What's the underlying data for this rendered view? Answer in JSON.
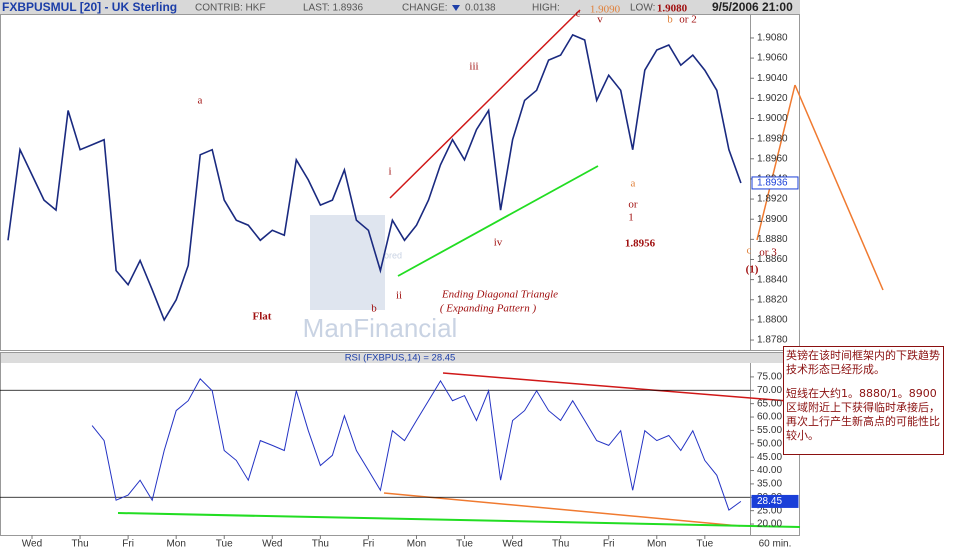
{
  "chart_data": [
    {
      "type": "line",
      "title": "FXBPUSMUL [20] - UK Sterling",
      "header": {
        "contrib": "CONTRIB: HKF",
        "last": "LAST: 1.8936",
        "change_label": "CHANGE:",
        "change": "0.0138",
        "high": "HIGH:",
        "low": "LOW:",
        "datetime": "9/5/2006 21:00"
      },
      "x": [
        -0.5,
        -0.25,
        0,
        0.25,
        0.5,
        0.75,
        1,
        1.25,
        1.5,
        1.75,
        2,
        2.25,
        2.5,
        2.75,
        3,
        3.25,
        3.5,
        3.75,
        4,
        4.25,
        4.5,
        4.75,
        5,
        5.25,
        5.5,
        5.75,
        6,
        6.25,
        6.5,
        6.75,
        7,
        7.25,
        7.5,
        7.75,
        8,
        8.25,
        8.5,
        8.75,
        9,
        9.25,
        9.5,
        9.75,
        10,
        10.25,
        10.5,
        10.75,
        11,
        11.25,
        11.5,
        11.75,
        12,
        12.25,
        12.5,
        12.75,
        13,
        13.25,
        13.5,
        13.75,
        14,
        14.25,
        14.5,
        14.75
      ],
      "values": [
        1.8879,
        1.8969,
        1.8944,
        1.8919,
        1.8909,
        1.9008,
        1.8969,
        1.8974,
        1.8979,
        1.8849,
        1.8835,
        1.8859,
        1.883,
        1.88,
        1.882,
        1.8854,
        1.8964,
        1.8969,
        1.8919,
        1.8899,
        1.8894,
        1.8879,
        1.8889,
        1.8884,
        1.8959,
        1.8939,
        1.8914,
        1.8919,
        1.8949,
        1.8899,
        1.8889,
        1.8849,
        1.8899,
        1.8879,
        1.8894,
        1.8919,
        1.8954,
        1.8979,
        1.8959,
        1.8989,
        1.9008,
        1.8909,
        1.8979,
        1.9018,
        1.9028,
        1.9058,
        1.9063,
        1.9083,
        1.9078,
        1.9018,
        1.9043,
        1.9028,
        1.8969,
        1.9048,
        1.9068,
        1.9073,
        1.9053,
        1.9063,
        1.9048,
        1.9028,
        1.8969,
        1.8936
      ],
      "color": "#1a2a80",
      "xlim": [
        -0.666,
        14.94
      ],
      "xticks": [
        {
          "value": 0,
          "label": "Wed"
        },
        {
          "value": 1,
          "label": "Thu"
        },
        {
          "value": 2,
          "label": "Fri"
        },
        {
          "value": 3,
          "label": "Mon"
        },
        {
          "value": 4,
          "label": "Tue"
        },
        {
          "value": 5,
          "label": "Wed"
        },
        {
          "value": 6,
          "label": "Thu"
        },
        {
          "value": 7,
          "label": "Fri"
        },
        {
          "value": 8,
          "label": "Mon"
        },
        {
          "value": 9,
          "label": "Tue"
        },
        {
          "value": 10,
          "label": "Wed"
        },
        {
          "value": 11,
          "label": "Thu"
        },
        {
          "value": 12,
          "label": "Fri"
        },
        {
          "value": 13,
          "label": "Mon"
        },
        {
          "value": 14,
          "label": "Tue"
        }
      ],
      "interval_label": "60 min.",
      "ylim": [
        1.87701,
        1.91038
      ],
      "yticks": [
        {
          "value": 1.878,
          "label": "1.8780"
        },
        {
          "value": 1.88,
          "label": "1.8800"
        },
        {
          "value": 1.882,
          "label": "1.8820"
        },
        {
          "value": 1.884,
          "label": "1.8840"
        },
        {
          "value": 1.886,
          "label": "1.8860"
        },
        {
          "value": 1.888,
          "label": "1.8880"
        },
        {
          "value": 1.89,
          "label": "1.8900"
        },
        {
          "value": 1.892,
          "label": "1.8920"
        },
        {
          "value": 1.894,
          "label": "1.8940"
        },
        {
          "value": 1.896,
          "label": "1.8960"
        },
        {
          "value": 1.898,
          "label": "1.8980"
        },
        {
          "value": 1.9,
          "label": "1.9000"
        },
        {
          "value": 1.902,
          "label": "1.9020"
        },
        {
          "value": 1.904,
          "label": "1.9040"
        },
        {
          "value": 1.906,
          "label": "1.9060"
        },
        {
          "value": 1.908,
          "label": "1.9080"
        }
      ],
      "annotations": [
        "a",
        "b",
        "c",
        "i",
        "ii",
        "iii",
        "iv",
        "v",
        "Flat",
        "Ending Diagonal Triangle",
        "( Expanding Pattern )",
        "1.9090",
        "1.9080",
        "b",
        "or 2",
        "a",
        "or",
        "1",
        "1.8956",
        "c",
        "or 3",
        "(1)"
      ],
      "watermark_sponsor": "sponsored",
      "watermark": "ManFinancial"
    },
    {
      "type": "line",
      "title": "RSI (FXBPUS,14) = 28.45",
      "x": [
        1.25,
        1.5,
        1.75,
        2,
        2.25,
        2.5,
        2.75,
        3,
        3.25,
        3.5,
        3.75,
        4,
        4.25,
        4.5,
        4.75,
        5,
        5.25,
        5.5,
        5.75,
        6,
        6.25,
        6.5,
        6.75,
        7,
        7.25,
        7.5,
        7.75,
        8,
        8.25,
        8.5,
        8.75,
        9,
        9.25,
        9.5,
        9.75,
        10,
        10.25,
        10.5,
        10.75,
        11,
        11.25,
        11.5,
        11.75,
        12,
        12.25,
        12.5,
        12.75,
        13,
        13.25,
        13.5,
        13.75,
        14,
        14.25,
        14.5,
        14.75
      ],
      "values": [
        56.8,
        51.2,
        28.9,
        30.8,
        36.4,
        28.9,
        47.5,
        62.4,
        66.1,
        74.3,
        69.8,
        47.5,
        43.8,
        36.4,
        51.2,
        49.4,
        47.5,
        69.8,
        54.9,
        41.9,
        45.7,
        60.5,
        47.5,
        40.1,
        32.6,
        54.9,
        51.2,
        58.7,
        66.1,
        73.5,
        66.1,
        68.0,
        58.7,
        69.8,
        36.4,
        58.7,
        62.4,
        69.8,
        62.4,
        58.7,
        66.1,
        58.7,
        51.2,
        49.4,
        54.9,
        32.6,
        54.9,
        51.2,
        53.1,
        47.5,
        54.9,
        43.8,
        38.2,
        25.2,
        28.45
      ],
      "color": "#2433c4",
      "xlim": [
        -0.666,
        14.94
      ],
      "ylim": [
        15.9,
        80.2
      ],
      "yticks": [
        {
          "value": 20,
          "label": "20.00"
        },
        {
          "value": 25,
          "label": "25.00"
        },
        {
          "value": 30,
          "label": "30.00"
        },
        {
          "value": 35,
          "label": "35.00"
        },
        {
          "value": 40,
          "label": "40.00"
        },
        {
          "value": 45,
          "label": "45.00"
        },
        {
          "value": 50,
          "label": "50.00"
        },
        {
          "value": 55,
          "label": "55.00"
        },
        {
          "value": 60,
          "label": "60.00"
        },
        {
          "value": 65,
          "label": "65.00"
        },
        {
          "value": 70,
          "label": "70.00"
        },
        {
          "value": 75,
          "label": "75.00"
        }
      ],
      "ref_lines": [
        70,
        30
      ]
    }
  ],
  "note": [
    "英镑在该时间框架内的下跌趋势技术形态已经形成。",
    "短线在大约1。8880/1。8900区域附近上下获得临时承接后，再次上行产生新高点的可能性比较小。"
  ]
}
